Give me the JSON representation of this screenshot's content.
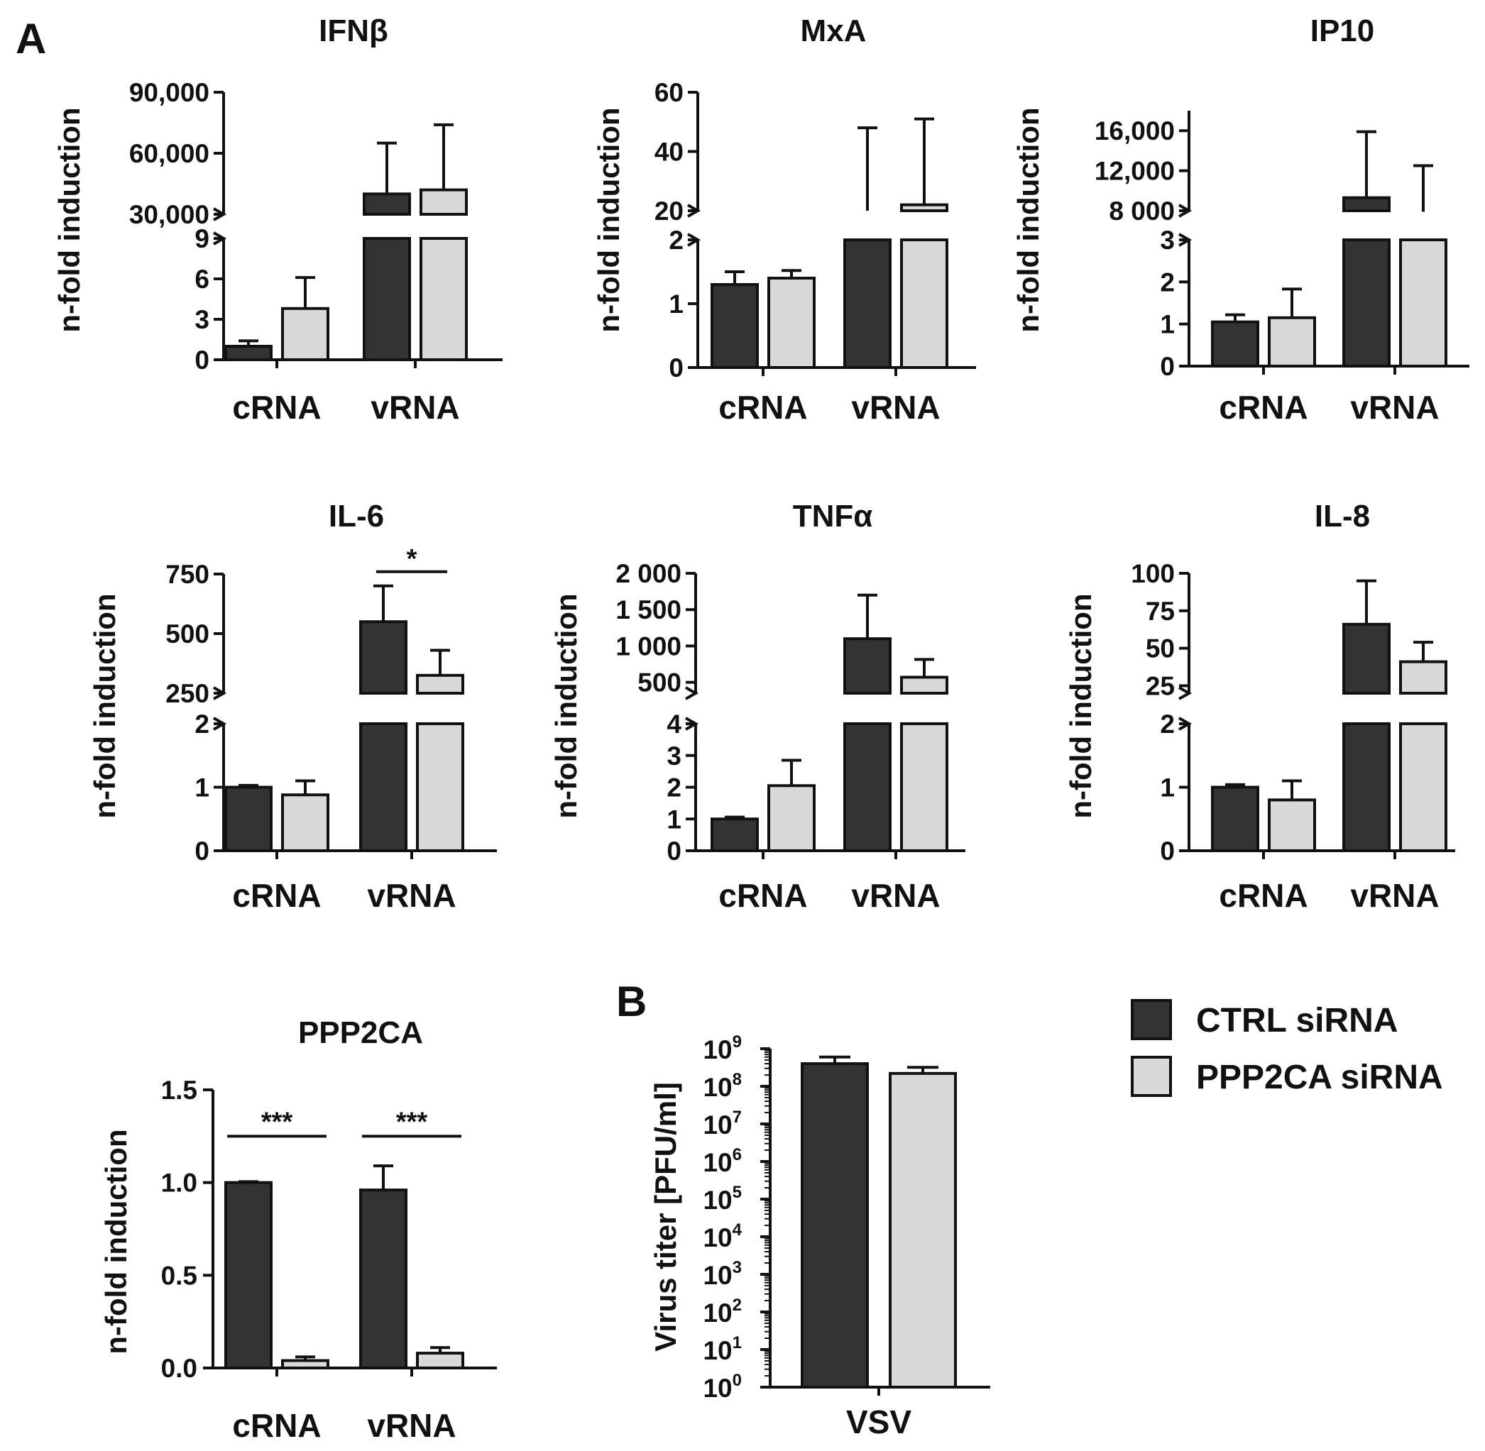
{
  "figure": {
    "panel_a_label": "A",
    "panel_b_label": "B"
  },
  "colors": {
    "ctrl": "#333333",
    "ppp2ca": "#d9d9d9",
    "line": "#111111"
  },
  "legend": {
    "items": [
      {
        "label": "CTRL siRNA",
        "color_key": "ctrl"
      },
      {
        "label": "PPP2CA siRNA",
        "color_key": "ppp2ca"
      }
    ]
  },
  "chart_data": [
    {
      "id": "ifnb",
      "type": "bar",
      "title": "IFNβ",
      "ylabel": "n-fold induction",
      "categories": [
        "cRNA",
        "vRNA"
      ],
      "broken_axis": true,
      "lower_ylim": [
        0,
        9
      ],
      "lower_ticks": [
        {
          "v": 0,
          "t": "0"
        },
        {
          "v": 3,
          "t": "3"
        },
        {
          "v": 6,
          "t": "6"
        },
        {
          "v": 9,
          "t": "9"
        }
      ],
      "upper_ylim": [
        30000,
        90000
      ],
      "upper_ticks": [
        {
          "v": 30000,
          "t": "30,000"
        },
        {
          "v": 60000,
          "t": "60,000"
        },
        {
          "v": 90000,
          "t": "90,000"
        }
      ],
      "series": [
        {
          "name": "CTRL siRNA",
          "values": [
            1,
            40000
          ],
          "errors": [
            0.4,
            25000
          ]
        },
        {
          "name": "PPP2CA siRNA",
          "values": [
            3.8,
            42000
          ],
          "errors": [
            2.3,
            32000
          ]
        }
      ],
      "significance": []
    },
    {
      "id": "mxa",
      "type": "bar",
      "title": "MxA",
      "ylabel": "n-fold induction",
      "categories": [
        "cRNA",
        "vRNA"
      ],
      "broken_axis": true,
      "lower_ylim": [
        0,
        2
      ],
      "lower_ticks": [
        {
          "v": 0,
          "t": "0"
        },
        {
          "v": 1,
          "t": "1"
        },
        {
          "v": 2,
          "t": "2"
        }
      ],
      "upper_ylim": [
        20,
        60
      ],
      "upper_ticks": [
        {
          "v": 20,
          "t": "20"
        },
        {
          "v": 40,
          "t": "40"
        },
        {
          "v": 60,
          "t": "60"
        }
      ],
      "series": [
        {
          "name": "CTRL siRNA",
          "values": [
            1.3,
            20
          ],
          "errors": [
            0.2,
            28
          ]
        },
        {
          "name": "PPP2CA siRNA",
          "values": [
            1.4,
            22
          ],
          "errors": [
            0.12,
            29
          ]
        }
      ],
      "significance": []
    },
    {
      "id": "ip10",
      "type": "bar",
      "title": "IP10",
      "ylabel": "n-fold induction",
      "categories": [
        "cRNA",
        "vRNA"
      ],
      "broken_axis": true,
      "lower_ylim": [
        0,
        3
      ],
      "lower_ticks": [
        {
          "v": 0,
          "t": "0"
        },
        {
          "v": 1,
          "t": "1"
        },
        {
          "v": 2,
          "t": "2"
        },
        {
          "v": 3,
          "t": "3"
        }
      ],
      "upper_ylim": [
        8000,
        18000
      ],
      "upper_ticks": [
        {
          "v": 8000,
          "t": "8 000"
        },
        {
          "v": 12000,
          "t": "12,000"
        },
        {
          "v": 16000,
          "t": "16,000"
        }
      ],
      "series": [
        {
          "name": "CTRL siRNA",
          "values": [
            1.05,
            9300
          ],
          "errors": [
            0.17,
            6600
          ]
        },
        {
          "name": "PPP2CA siRNA",
          "values": [
            1.15,
            7900
          ],
          "errors": [
            0.68,
            4600
          ]
        }
      ],
      "significance": []
    },
    {
      "id": "il6",
      "type": "bar",
      "title": "IL-6",
      "ylabel": "n-fold induction",
      "categories": [
        "cRNA",
        "vRNA"
      ],
      "broken_axis": true,
      "lower_ylim": [
        0,
        2
      ],
      "lower_ticks": [
        {
          "v": 0,
          "t": "0"
        },
        {
          "v": 1,
          "t": "1"
        },
        {
          "v": 2,
          "t": "2"
        }
      ],
      "upper_ylim": [
        250,
        750
      ],
      "upper_ticks": [
        {
          "v": 250,
          "t": "250"
        },
        {
          "v": 500,
          "t": "500"
        },
        {
          "v": 750,
          "t": "750"
        }
      ],
      "series": [
        {
          "name": "CTRL siRNA",
          "values": [
            1.0,
            550
          ],
          "errors": [
            0.03,
            150
          ]
        },
        {
          "name": "PPP2CA siRNA",
          "values": [
            0.88,
            325
          ],
          "errors": [
            0.22,
            105
          ]
        }
      ],
      "significance": [
        {
          "category": "vRNA",
          "label": "*"
        }
      ]
    },
    {
      "id": "tnfa",
      "type": "bar",
      "title": "TNFα",
      "ylabel": "n-fold induction",
      "categories": [
        "cRNA",
        "vRNA"
      ],
      "broken_axis": true,
      "lower_ylim": [
        0,
        4
      ],
      "lower_ticks": [
        {
          "v": 0,
          "t": "0"
        },
        {
          "v": 1,
          "t": "1"
        },
        {
          "v": 2,
          "t": "2"
        },
        {
          "v": 3,
          "t": "3"
        },
        {
          "v": 4,
          "t": "4"
        }
      ],
      "upper_ylim": [
        350,
        2000
      ],
      "upper_ticks": [
        {
          "v": 500,
          "t": "500"
        },
        {
          "v": 1000,
          "t": "1 000"
        },
        {
          "v": 1500,
          "t": "1 500"
        },
        {
          "v": 2000,
          "t": "2 000"
        }
      ],
      "series": [
        {
          "name": "CTRL siRNA",
          "values": [
            1.0,
            1100
          ],
          "errors": [
            0.06,
            600
          ]
        },
        {
          "name": "PPP2CA siRNA",
          "values": [
            2.05,
            570
          ],
          "errors": [
            0.8,
            245
          ]
        }
      ],
      "significance": []
    },
    {
      "id": "il8",
      "type": "bar",
      "title": "IL-8",
      "ylabel": "n-fold induction",
      "categories": [
        "cRNA",
        "vRNA"
      ],
      "broken_axis": true,
      "lower_ylim": [
        0,
        2
      ],
      "lower_ticks": [
        {
          "v": 0,
          "t": "0"
        },
        {
          "v": 1,
          "t": "1"
        },
        {
          "v": 2,
          "t": "2"
        }
      ],
      "upper_ylim": [
        20,
        100
      ],
      "upper_ticks": [
        {
          "v": 25,
          "t": "25"
        },
        {
          "v": 50,
          "t": "50"
        },
        {
          "v": 75,
          "t": "75"
        },
        {
          "v": 100,
          "t": "100"
        }
      ],
      "series": [
        {
          "name": "CTRL siRNA",
          "values": [
            1.0,
            66
          ],
          "errors": [
            0.04,
            29
          ]
        },
        {
          "name": "PPP2CA siRNA",
          "values": [
            0.8,
            41
          ],
          "errors": [
            0.3,
            13
          ]
        }
      ],
      "significance": []
    },
    {
      "id": "ppp2ca",
      "type": "bar",
      "title": "PPP2CA",
      "ylabel": "n-fold induction",
      "categories": [
        "cRNA",
        "vRNA"
      ],
      "broken_axis": false,
      "ylim": [
        0,
        1.5
      ],
      "ticks": [
        {
          "v": 0,
          "t": "0.0"
        },
        {
          "v": 0.5,
          "t": "0.5"
        },
        {
          "v": 1.0,
          "t": "1.0"
        },
        {
          "v": 1.5,
          "t": "1.5"
        }
      ],
      "series": [
        {
          "name": "CTRL siRNA",
          "values": [
            1.0,
            0.96
          ],
          "errors": [
            0.005,
            0.13
          ]
        },
        {
          "name": "PPP2CA siRNA",
          "values": [
            0.04,
            0.08
          ],
          "errors": [
            0.02,
            0.03
          ]
        }
      ],
      "significance": [
        {
          "category": "cRNA",
          "label": "***"
        },
        {
          "category": "vRNA",
          "label": "***"
        }
      ]
    },
    {
      "id": "vsv",
      "type": "bar",
      "title": "",
      "ylabel": "Virus titer [PFU/ml]",
      "categories": [
        "VSV"
      ],
      "yscale": "log",
      "ylim_exp": [
        0,
        9
      ],
      "ticks_base": "10",
      "ticks_exp": [
        "0",
        "1",
        "2",
        "3",
        "4",
        "5",
        "6",
        "7",
        "8",
        "9"
      ],
      "series": [
        {
          "name": "CTRL siRNA",
          "values": [
            400000000
          ],
          "errors": [
            200000000
          ]
        },
        {
          "name": "PPP2CA siRNA",
          "values": [
            220000000
          ],
          "errors": [
            100000000
          ]
        }
      ],
      "significance": []
    }
  ]
}
